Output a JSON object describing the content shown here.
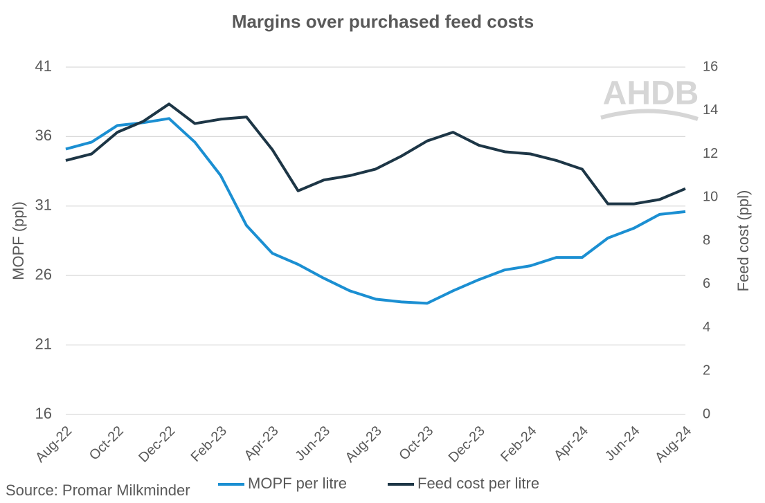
{
  "chart_data": {
    "type": "line",
    "title": "Margins over purchased feed costs",
    "categories": [
      "Aug-22",
      null,
      "Oct-22",
      null,
      "Dec-22",
      null,
      "Feb-23",
      null,
      "Apr-23",
      null,
      "Jun-23",
      null,
      "Aug-23",
      null,
      "Oct-23",
      null,
      "Dec-23",
      null,
      "Feb-24",
      null,
      "Apr-24",
      null,
      "Jun-24",
      null,
      "Aug-24"
    ],
    "series": [
      {
        "name": "MOPF per litre",
        "color": "#1b8fd2",
        "axis": "y",
        "values": [
          35.1,
          35.6,
          36.8,
          37.0,
          37.3,
          35.6,
          33.2,
          29.6,
          27.6,
          26.8,
          25.8,
          24.9,
          24.3,
          24.1,
          24.0,
          24.9,
          25.7,
          26.4,
          26.7,
          27.3,
          27.3,
          28.7,
          29.4,
          30.4,
          30.6
        ]
      },
      {
        "name": "Feed cost per litre",
        "color": "#1d3646",
        "axis": "y2",
        "values": [
          11.7,
          12.0,
          13.0,
          13.5,
          14.3,
          13.4,
          13.6,
          13.7,
          12.2,
          10.3,
          10.8,
          11.0,
          11.3,
          11.9,
          12.6,
          13.0,
          12.4,
          12.1,
          12.0,
          11.7,
          11.3,
          9.7,
          9.7,
          9.9,
          10.4
        ]
      }
    ],
    "ylabel": "MOPF (ppl)",
    "y2label": "Feed cost (ppl)",
    "ylim": [
      16,
      41
    ],
    "yticks": [
      16,
      21,
      26,
      31,
      36,
      41
    ],
    "y2lim": [
      0,
      16
    ],
    "y2ticks": [
      0,
      2,
      4,
      6,
      8,
      10,
      12,
      14,
      16
    ],
    "grid": true,
    "legend": "bottom",
    "source": "Source: Promar Milkminder",
    "logo": "AHDB"
  }
}
